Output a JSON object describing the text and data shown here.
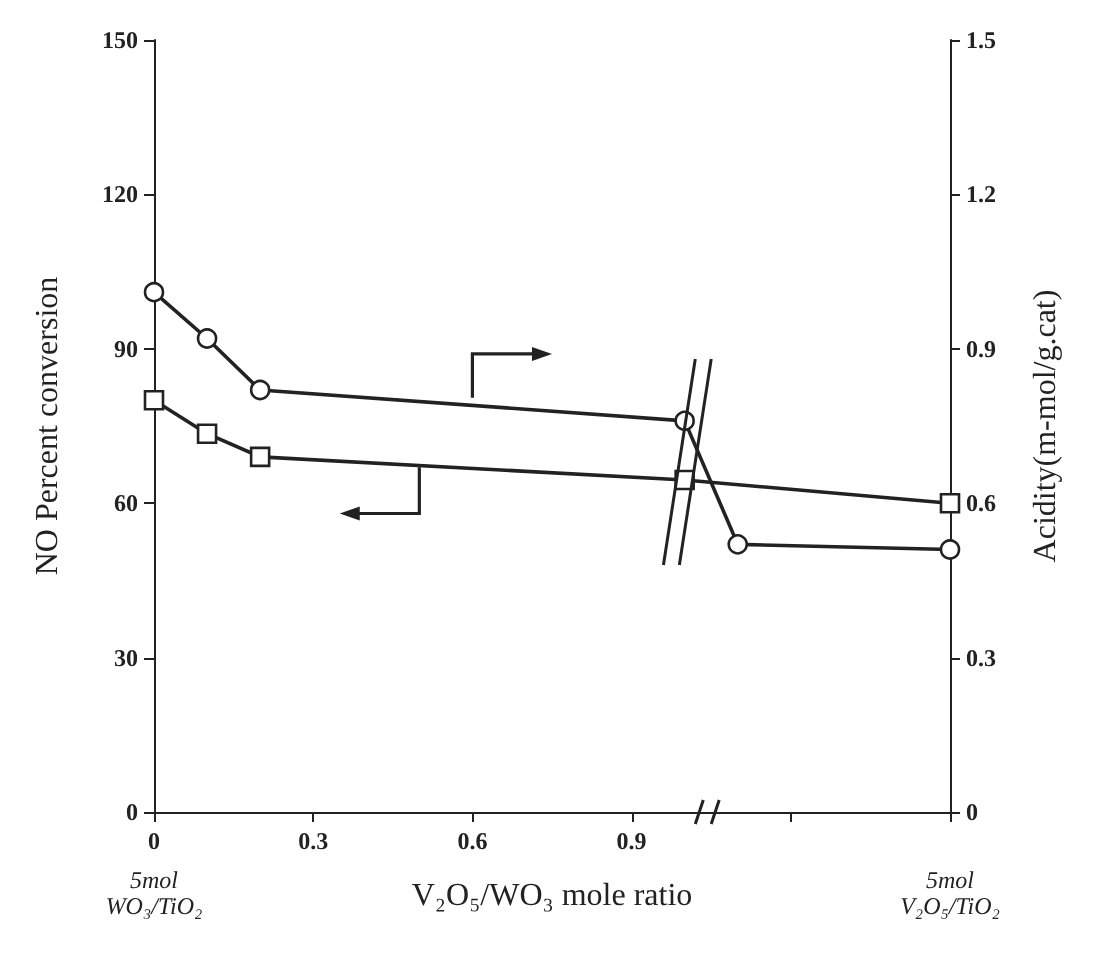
{
  "chart_data": {
    "type": "line",
    "xlabel": "V₂O₅/WO₃ mole ratio",
    "ylabel": "NO Percent conversion",
    "y2label": "Acidity(m-mol/g.cat)",
    "series": [
      {
        "color": "#222222",
        "marker": "square",
        "x": [
          0,
          0.1,
          0.2,
          1.0,
          1.5
        ],
        "values": [
          80,
          73.5,
          69,
          64.5,
          60
        ]
      },
      {
        "color": "#222222",
        "marker": "circle",
        "axis": "y2",
        "x": [
          0,
          0.1,
          0.2,
          1.0,
          1.1,
          1.5
        ],
        "values": [
          1.01,
          0.92,
          0.82,
          0.76,
          0.52,
          0.51
        ]
      }
    ],
    "xlim": [
      0,
      1.5
    ],
    "xticks": [
      0,
      0.3,
      0.6,
      0.9,
      {
        "value": 1.2,
        "label": null
      },
      {
        "value": 1.5,
        "label": null
      }
    ],
    "ylim": [
      0,
      150
    ],
    "yticks": [
      0,
      30,
      60,
      90,
      120,
      150
    ],
    "y2lim": [
      0,
      1.5
    ],
    "y2ticks": [
      0,
      0.3,
      0.6,
      0.9,
      1.2,
      1.5
    ],
    "annotations": [
      "5mol\nWO₃/TiO₂",
      "5mol\nV₂O₅/TiO₂"
    ],
    "grid": false,
    "line_style": "solid"
  }
}
